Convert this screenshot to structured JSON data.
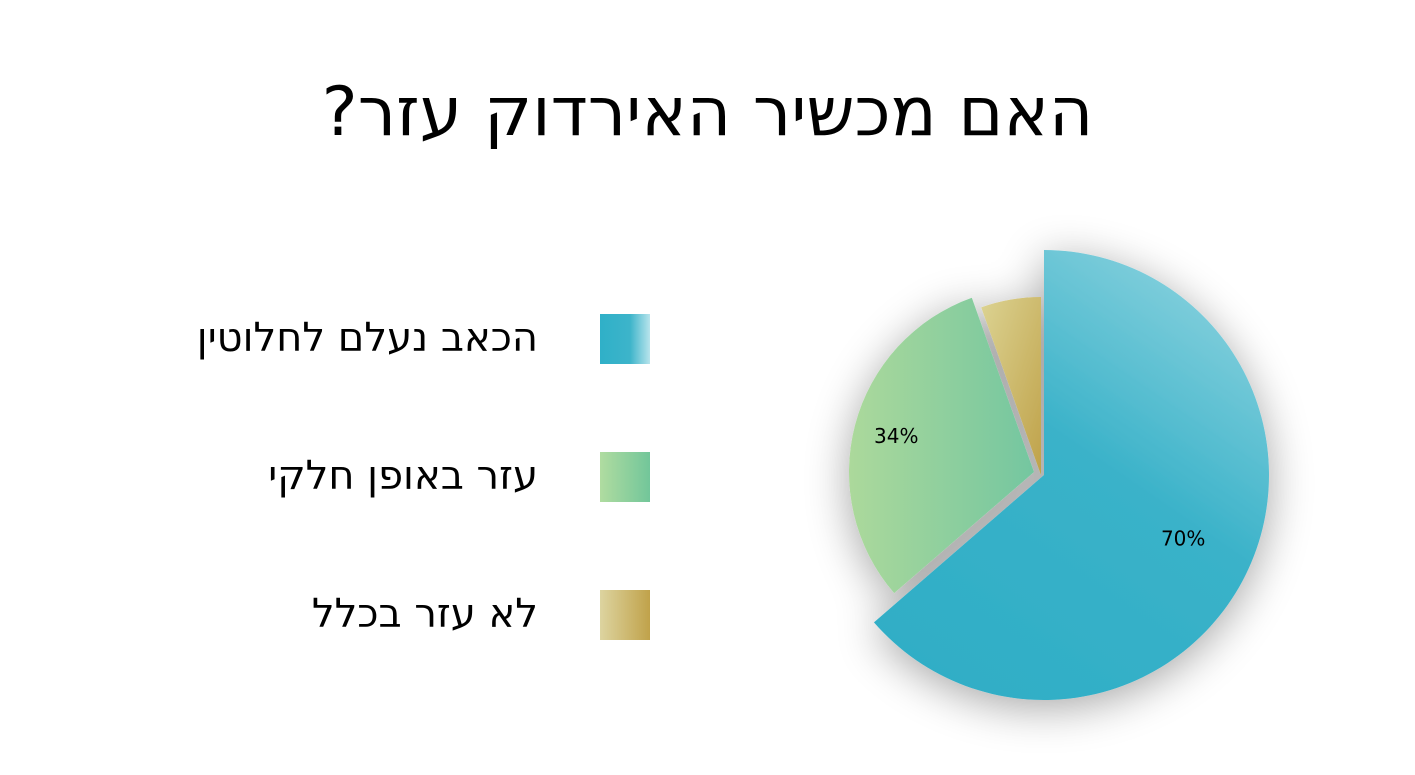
{
  "chart_data": {
    "type": "pie",
    "title": "האם מכשיר האירדוק עזר?",
    "categories": [
      "הכאב נעלם לחלוטין",
      "עזר באופן חלקי",
      "לא עזר בכלל"
    ],
    "values": [
      70,
      34,
      6
    ],
    "data_labels": [
      "70%",
      "34%",
      ""
    ],
    "legend_position": "left",
    "colors": {
      "slice_1": [
        "#2fb0c8",
        "#86cfdc"
      ],
      "slice_2": [
        "#a8d898",
        "#74c6a0"
      ],
      "slice_3": [
        "#d8cf8c",
        "#c2a54c"
      ]
    }
  }
}
